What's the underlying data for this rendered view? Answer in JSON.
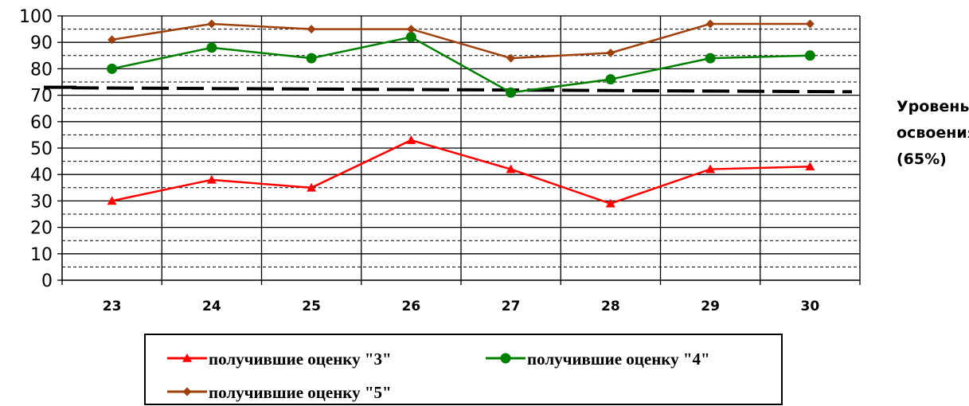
{
  "chart_data": {
    "type": "line",
    "categories": [
      "23",
      "24",
      "25",
      "26",
      "27",
      "28",
      "29",
      "30"
    ],
    "ylim": [
      0,
      100
    ],
    "yticks": [
      "0",
      "10",
      "20",
      "30",
      "40",
      "50",
      "60",
      "70",
      "80",
      "90",
      "100"
    ],
    "grid": true,
    "legend_position": "bottom",
    "series": [
      {
        "name": "получившие оценку \"3\"",
        "color": "#ff0000",
        "marker": "triangle",
        "values": [
          30,
          38,
          35,
          53,
          42,
          29,
          42,
          43
        ]
      },
      {
        "name": "получившие оценку \"4\"",
        "color": "#008000",
        "marker": "circle",
        "values": [
          80,
          88,
          84,
          92,
          71,
          76,
          84,
          85
        ]
      },
      {
        "name": "получившие оценку \"5\"",
        "color": "#a0410d",
        "marker": "diamond",
        "values": [
          91,
          97,
          95,
          95,
          84,
          86,
          97,
          97
        ]
      }
    ],
    "threshold": {
      "label_lines": [
        "Уровень",
        "освоения",
        "(65%)"
      ],
      "color": "#000000"
    }
  }
}
